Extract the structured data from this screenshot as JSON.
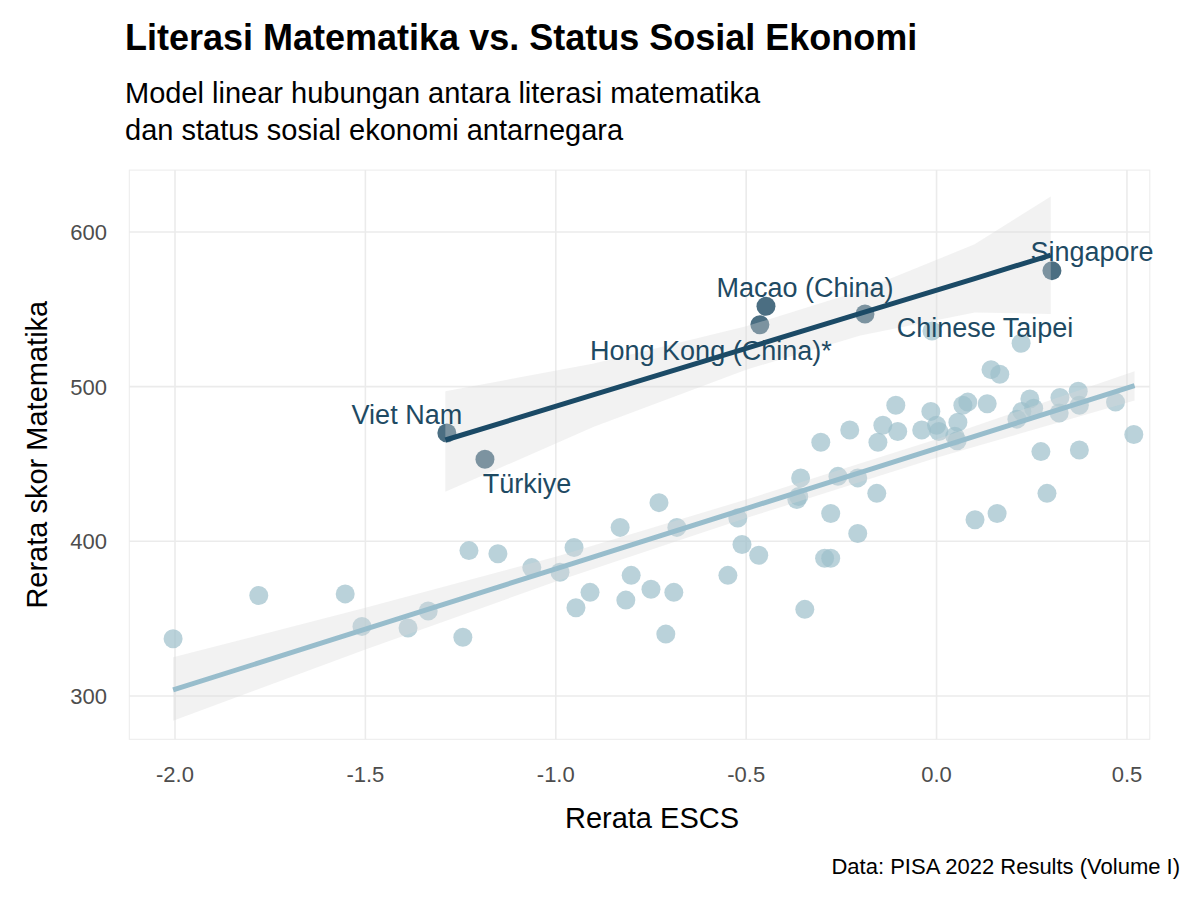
{
  "chart_data": {
    "type": "scatter",
    "title": "Literasi Matematika vs. Status Sosial Ekonomi",
    "subtitle": "Model linear hubungan antara literasi matematika\ndan status sosial ekonomi antarnegara",
    "x_label": "Rerata ESCS",
    "y_label": "Rerata skor Matematika",
    "caption": "Data: PISA 2022 Results (Volume I)",
    "xlim": [
      -2.12,
      0.56
    ],
    "ylim": [
      272,
      640
    ],
    "xticks": [
      {
        "value": -2,
        "label": "-2.0"
      },
      -1.5,
      {
        "value": -1,
        "label": "-1.0"
      },
      -0.5,
      {
        "value": 0,
        "label": "0.0"
      },
      0.5
    ],
    "yticks": [
      300,
      400,
      500,
      600
    ],
    "grid": true,
    "series": [
      {
        "type": "scatter",
        "marker": "circle",
        "color": "#9dbfcb",
        "x": [
          -2.005,
          -1.78,
          -1.553,
          -1.509,
          -1.388,
          -1.335,
          -1.228,
          -1.244,
          -1.152,
          -1.063,
          -0.989,
          -0.952,
          -0.947,
          -0.91,
          -0.831,
          -0.816,
          -0.802,
          -0.75,
          -0.729,
          -0.711,
          -0.69,
          -0.682,
          -0.548,
          -0.522,
          -0.511,
          -0.467,
          -0.367,
          -0.362,
          -0.357,
          -0.346,
          -0.304,
          -0.294,
          -0.278,
          -0.278,
          -0.259,
          -0.228,
          -0.207,
          -0.207,
          -0.157,
          -0.154,
          -0.141,
          -0.107,
          -0.102,
          -0.039,
          -0.012,
          -0.015,
          0.0,
          0.006,
          0.048,
          0.054,
          0.056,
          0.069,
          0.082,
          0.101,
          0.133,
          0.143,
          0.159,
          0.166,
          0.222,
          0.211,
          0.224,
          0.245,
          0.255,
          0.274,
          0.29,
          0.322,
          0.324,
          0.372,
          0.375,
          0.375,
          0.47,
          0.518
        ],
        "values": [
          337,
          365,
          366,
          345,
          344,
          355,
          394,
          338,
          392,
          383,
          380,
          396,
          357,
          367,
          409,
          362,
          378,
          369,
          425,
          340,
          367,
          409,
          378,
          415,
          398,
          391,
          427,
          429,
          441,
          356,
          464,
          389,
          389,
          418,
          442,
          472,
          405,
          441,
          431,
          464,
          475,
          488,
          471,
          472,
          536,
          484,
          475,
          471,
          468,
          465,
          477,
          488,
          490,
          414,
          489,
          511,
          418,
          508,
          528,
          479,
          484,
          492,
          486,
          458,
          431,
          483,
          493,
          497,
          459,
          488,
          490,
          469
        ]
      },
      {
        "type": "line",
        "line_style": "solid",
        "color": "#98bdcc",
        "x": [
          -2.005,
          -1.5,
          -1.0,
          -0.5,
          0.0,
          0.52
        ],
        "values": [
          303.9,
          343.2,
          382.2,
          421.2,
          460.1,
          500.6
        ],
        "lower": [
          284,
          330,
          374,
          415,
          454,
          491
        ],
        "upper": [
          325,
          357,
          390,
          427,
          466,
          510
        ]
      },
      {
        "type": "scatter",
        "marker": "circle",
        "color": "#1e4a63",
        "x": [
          -1.286,
          -1.186,
          -0.464,
          -0.448,
          -0.188,
          0.303
        ],
        "values": [
          470,
          453,
          540,
          552,
          547,
          575
        ],
        "labels": [
          "Viet Nam",
          "Türkiye",
          "Hong Kong (China)*",
          "Macao (China)",
          "Chinese Taipei",
          "Singapore"
        ]
      },
      {
        "type": "line",
        "line_style": "solid",
        "color": "#1b4a66",
        "x": [
          -1.29,
          -0.9,
          -0.5,
          -0.2,
          0.1,
          0.3
        ],
        "values": [
          465.5,
          494.8,
          524.8,
          547.4,
          569.9,
          585.0
        ],
        "lower": [
          432,
          474,
          511,
          533,
          548,
          547
        ],
        "upper": [
          497,
          515,
          539,
          562,
          592,
          623
        ]
      }
    ]
  }
}
